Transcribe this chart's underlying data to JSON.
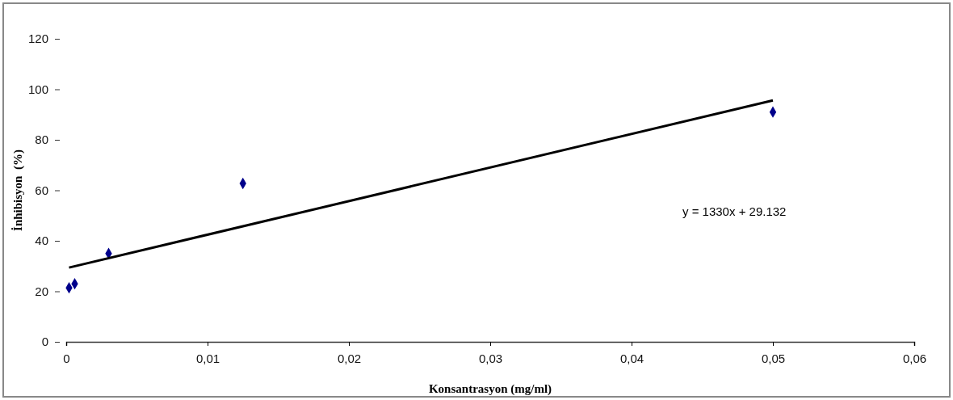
{
  "chart_data": {
    "type": "scatter",
    "xlabel": "Konsantrasyon (mg/ml)",
    "ylabel": "İnhibisyon  (%)",
    "xlim": [
      0,
      0.06
    ],
    "xticks": [
      {
        "value": 0,
        "label": "0"
      },
      {
        "value": 0.01,
        "label": "0,01"
      },
      {
        "value": 0.02,
        "label": "0,02"
      },
      {
        "value": 0.03,
        "label": "0,03"
      },
      {
        "value": 0.04,
        "label": "0,04"
      },
      {
        "value": 0.05,
        "label": "0,05"
      },
      {
        "value": 0.06,
        "label": "0,06"
      }
    ],
    "ylim": [
      0,
      120
    ],
    "yticks": [
      0,
      20,
      40,
      60,
      80,
      100,
      120
    ],
    "grid": false,
    "marker": "diamond",
    "series": [
      {
        "color": "#00008b",
        "x": [
          0.0002,
          0.0006,
          0.003,
          0.0125,
          0.05
        ],
        "values": [
          21.4,
          23,
          35,
          62.7,
          91
        ]
      },
      {
        "type": "line",
        "color": "#000000",
        "x": [
          0.0002,
          0.05
        ],
        "values": [
          29.4,
          95.6
        ],
        "line_style": "solid",
        "marker": "none"
      }
    ],
    "annotations": [
      "y = 1330x + 29.132"
    ]
  }
}
